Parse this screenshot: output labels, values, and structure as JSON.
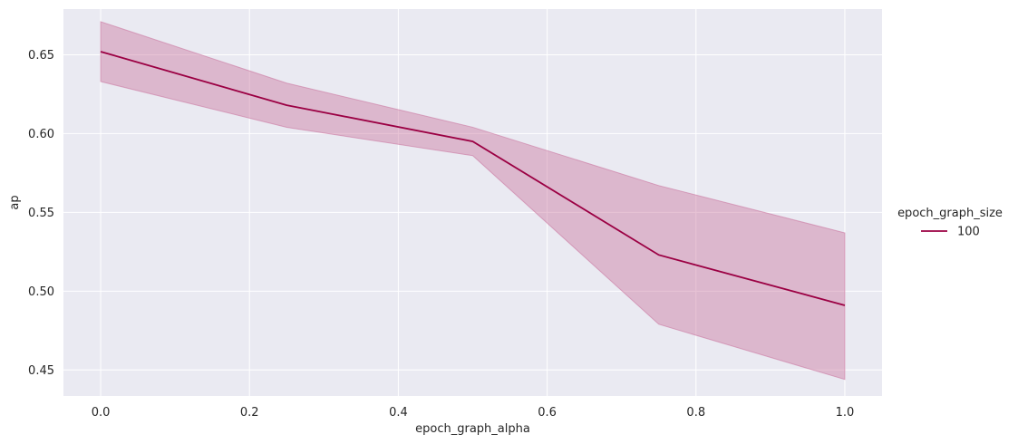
{
  "chart_data": {
    "type": "line",
    "xlabel": "epoch_graph_alpha",
    "ylabel": "ap",
    "xlim": [
      -0.05,
      1.05
    ],
    "ylim": [
      0.4335,
      0.679
    ],
    "xticks": [
      0.0,
      0.2,
      0.4,
      0.6,
      0.8,
      1.0
    ],
    "xtick_labels": [
      "0.0",
      "0.2",
      "0.4",
      "0.6",
      "0.8",
      "1.0"
    ],
    "yticks": [
      0.45,
      0.5,
      0.55,
      0.6,
      0.65
    ],
    "ytick_labels": [
      "0.45",
      "0.50",
      "0.55",
      "0.60",
      "0.65"
    ],
    "grid": true,
    "legend": {
      "title": "epoch_graph_size",
      "placement": "right",
      "entries": [
        "100"
      ]
    },
    "series": [
      {
        "name": "100",
        "color": "#9b0043",
        "band_color": "#c8709a",
        "x": [
          0.0,
          0.25,
          0.5,
          0.75,
          1.0
        ],
        "y": [
          0.652,
          0.618,
          0.595,
          0.523,
          0.491
        ],
        "ci_low": [
          0.633,
          0.604,
          0.586,
          0.479,
          0.444
        ],
        "ci_high": [
          0.671,
          0.632,
          0.604,
          0.567,
          0.537
        ]
      }
    ],
    "colors": {
      "plot_background": "#eaeaf2",
      "grid": "#ffffff"
    }
  }
}
